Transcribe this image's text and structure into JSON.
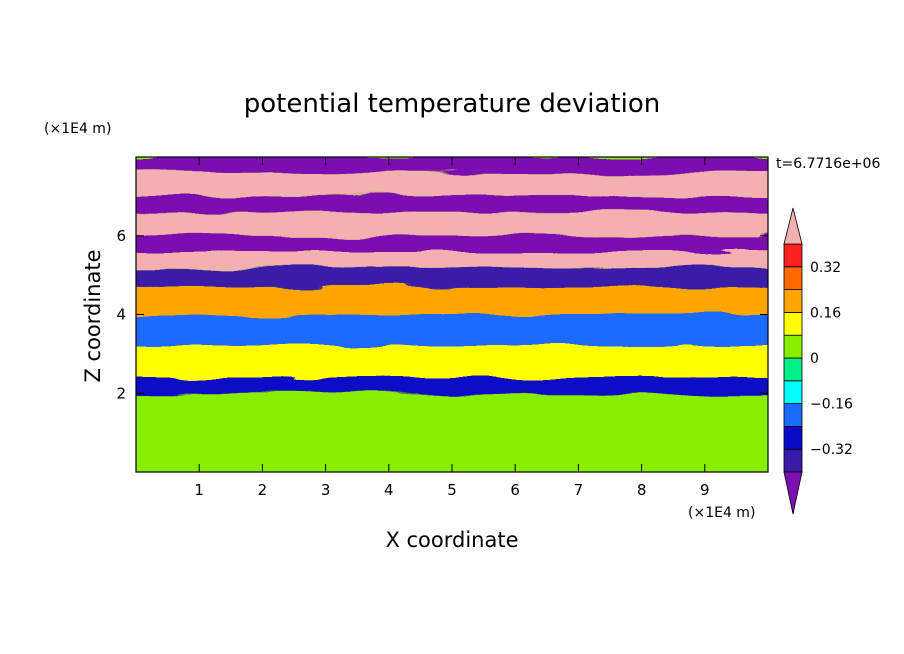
{
  "chart_data": {
    "type": "heatmap",
    "title": "potential temperature deviation",
    "xlabel": "X coordinate",
    "ylabel": "Z coordinate",
    "x_unit": "(×1E4 m)",
    "y_unit": "(×1E4 m)",
    "time_label": "t=6.7716e+06",
    "xlim": [
      0,
      10
    ],
    "ylim": [
      0,
      8
    ],
    "x_ticks": [
      1,
      2,
      3,
      4,
      5,
      6,
      7,
      8,
      9
    ],
    "y_ticks": [
      2,
      4,
      6
    ],
    "legend_position": "right",
    "colorbar": {
      "levels": [
        -0.4,
        -0.32,
        -0.24,
        -0.16,
        -0.08,
        0,
        0.08,
        0.16,
        0.24,
        0.32,
        0.4
      ],
      "labeled_levels": [
        "0.32",
        "0.16",
        "0",
        "−0.16",
        "−0.32"
      ],
      "colors_low_to_high": [
        "#7b0fb0",
        "#3a1aa8",
        "#0a0ac8",
        "#1a6aff",
        "#00ffff",
        "#00ee88",
        "#88ee00",
        "#ffff00",
        "#ffa500",
        "#ff6a00",
        "#ff2020",
        "#f4b0b0"
      ],
      "extend": "both"
    },
    "layers": [
      {
        "z": [
          0.0,
          0.45
        ],
        "value": 0.04
      },
      {
        "z": [
          0.45,
          1.5
        ],
        "value": 0.0
      },
      {
        "z": [
          1.5,
          2.0
        ],
        "value": 0.0
      },
      {
        "z": [
          2.0,
          2.4
        ],
        "value": -0.3
      },
      {
        "z": [
          2.4,
          3.2
        ],
        "value": 0.1
      },
      {
        "z": [
          3.2,
          4.0
        ],
        "value": -0.2
      },
      {
        "z": [
          4.0,
          4.7
        ],
        "value": 0.2
      },
      {
        "z": [
          4.7,
          5.2
        ],
        "value": -0.4
      },
      {
        "z": [
          5.2,
          5.6
        ],
        "value": 0.45
      },
      {
        "z": [
          5.6,
          6.0
        ],
        "value": -0.45
      },
      {
        "z": [
          6.0,
          6.6
        ],
        "value": 0.45
      },
      {
        "z": [
          6.6,
          7.0
        ],
        "value": -0.45
      },
      {
        "z": [
          7.0,
          7.6
        ],
        "value": 0.45
      },
      {
        "z": [
          7.6,
          8.0
        ],
        "value": -0.45
      }
    ]
  }
}
